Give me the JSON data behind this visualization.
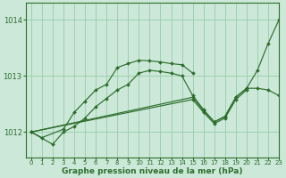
{
  "bg_color": "#cce8d8",
  "grid_color": "#99ccaa",
  "line_color": "#2d6e2d",
  "marker_color": "#2d6e2d",
  "xlabel": "Graphe pression niveau de la mer (hPa)",
  "xlabel_fontsize": 6.5,
  "xlim": [
    -0.5,
    23
  ],
  "ylim": [
    1011.55,
    1014.3
  ],
  "yticks": [
    1012,
    1013,
    1014
  ],
  "xticks": [
    0,
    1,
    2,
    3,
    4,
    5,
    6,
    7,
    8,
    9,
    10,
    11,
    12,
    13,
    14,
    15,
    16,
    17,
    18,
    19,
    20,
    21,
    22,
    23
  ],
  "series": [
    {
      "x": [
        0,
        1,
        3,
        4,
        5,
        6,
        7,
        8,
        9,
        10,
        11,
        12,
        13,
        14,
        15
      ],
      "y": [
        1012.0,
        1011.9,
        1012.05,
        1012.35,
        1012.55,
        1012.75,
        1012.85,
        1013.15,
        1013.22,
        1013.28,
        1013.27,
        1013.25,
        1013.22,
        1013.2,
        1013.05
      ]
    },
    {
      "x": [
        0,
        2,
        3,
        4,
        5,
        6,
        7,
        8,
        9,
        10,
        11,
        12,
        13,
        14,
        15,
        16,
        17,
        18,
        19,
        20,
        21,
        22,
        23
      ],
      "y": [
        1012.0,
        1011.78,
        1012.0,
        1012.1,
        1012.25,
        1012.45,
        1012.6,
        1012.75,
        1012.85,
        1013.05,
        1013.1,
        1013.08,
        1013.05,
        1013.0,
        1012.65,
        1012.4,
        1012.18,
        1012.28,
        1012.62,
        1012.78,
        1013.1,
        1013.58,
        1014.0
      ]
    },
    {
      "x": [
        0,
        15,
        16,
        17,
        18,
        19,
        20,
        21,
        22,
        23
      ],
      "y": [
        1012.0,
        1012.62,
        1012.38,
        1012.18,
        1012.28,
        1012.62,
        1012.78,
        1012.78,
        1012.75,
        1012.65
      ]
    },
    {
      "x": [
        0,
        15,
        16,
        17,
        18,
        19,
        20
      ],
      "y": [
        1012.0,
        1012.58,
        1012.35,
        1012.15,
        1012.25,
        1012.58,
        1012.75
      ]
    }
  ]
}
